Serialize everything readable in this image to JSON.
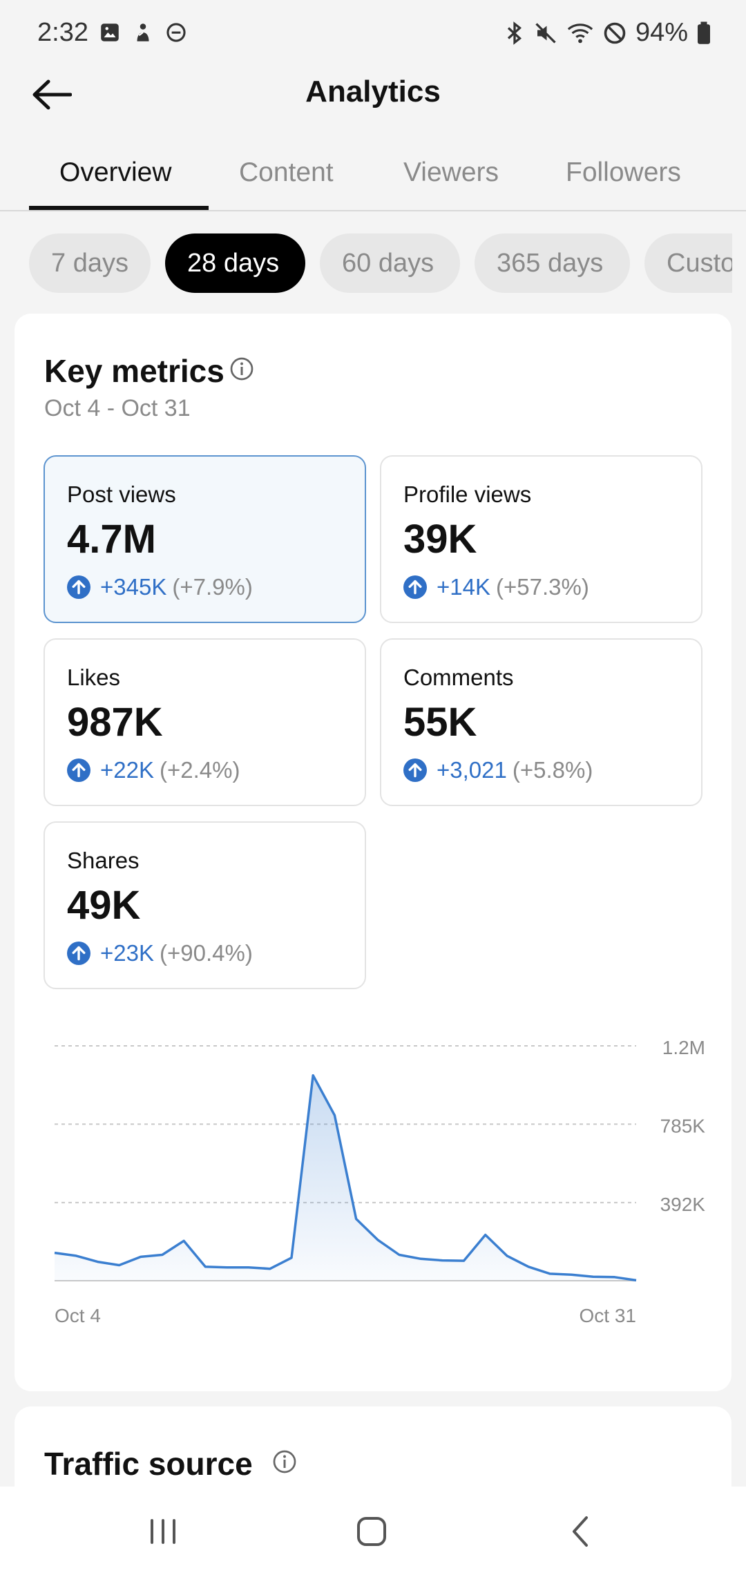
{
  "status_bar": {
    "time": "2:32",
    "battery": "94%",
    "left_icons": [
      "image-icon",
      "person-icon",
      "dnd-icon"
    ],
    "right_icons": [
      "bluetooth-icon",
      "mute-icon",
      "wifi-icon",
      "blocked-icon",
      "battery-icon"
    ]
  },
  "header": {
    "title": "Analytics"
  },
  "tabs": [
    {
      "label": "Overview",
      "active": true
    },
    {
      "label": "Content",
      "active": false
    },
    {
      "label": "Viewers",
      "active": false
    },
    {
      "label": "Followers",
      "active": false
    }
  ],
  "ranges": [
    {
      "label": "7 days",
      "active": false
    },
    {
      "label": "28 days",
      "active": true
    },
    {
      "label": "60 days",
      "active": false
    },
    {
      "label": "365 days",
      "active": false
    },
    {
      "label": "Custom",
      "active": false
    }
  ],
  "key_metrics": {
    "title": "Key metrics",
    "date_range": "Oct 4 - Oct 31",
    "items": [
      {
        "label": "Post views",
        "value": "4.7M",
        "change": "+345K",
        "pct": "(+7.9%)",
        "selected": true
      },
      {
        "label": "Profile views",
        "value": "39K",
        "change": "+14K",
        "pct": "(+57.3%)",
        "selected": false
      },
      {
        "label": "Likes",
        "value": "987K",
        "change": "+22K",
        "pct": "(+2.4%)",
        "selected": false
      },
      {
        "label": "Comments",
        "value": "55K",
        "change": "+3,021",
        "pct": "(+5.8%)",
        "selected": false
      },
      {
        "label": "Shares",
        "value": "49K",
        "change": "+23K",
        "pct": "(+90.4%)",
        "selected": false
      }
    ]
  },
  "chart_data": {
    "type": "area",
    "x_labels": [
      "Oct 4",
      "Oct 31"
    ],
    "y_ticks": [
      "1.2M",
      "785K",
      "392K"
    ],
    "y_tick_values": [
      1178000,
      785000,
      392000
    ],
    "ylim": [
      0,
      1178000
    ],
    "color": "#3b7fd0",
    "grid": true,
    "series": [
      {
        "values": [
          140000,
          125000,
          95000,
          78000,
          120000,
          130000,
          200000,
          70000,
          67000,
          67000,
          60000,
          115000,
          1030000,
          830000,
          310000,
          205000,
          130000,
          110000,
          102000,
          100000,
          230000,
          125000,
          70000,
          35000,
          30000,
          20000,
          18000,
          2000
        ]
      }
    ]
  },
  "traffic": {
    "title": "Traffic source"
  },
  "nav": [
    "recents-icon",
    "home-icon",
    "back-nav-icon"
  ],
  "colors": {
    "accent": "#2f6fc6",
    "selected_border": "#5b93cf",
    "selected_bg": "#f3f8fc"
  }
}
